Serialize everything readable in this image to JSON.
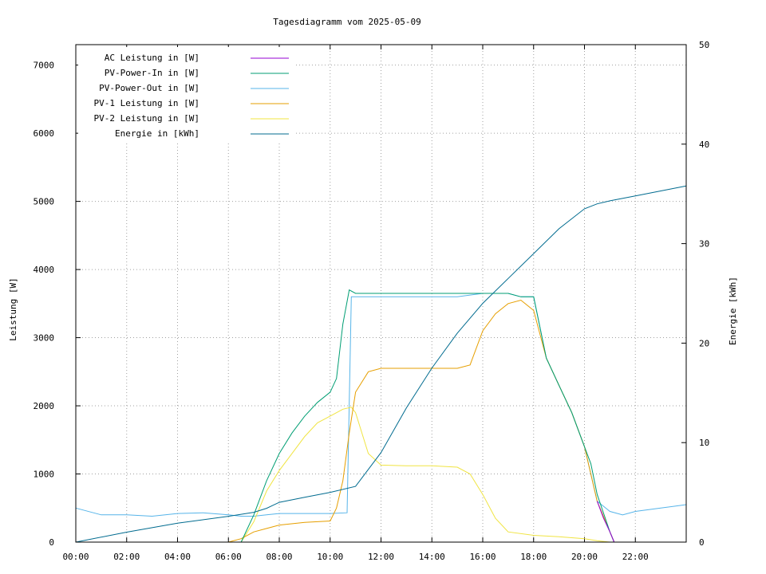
{
  "chart_data": {
    "type": "line",
    "title": "Tagesdiagramm vom 2025-05-09",
    "ylabel": "Leistung [W]",
    "y2label": "Energie [kWh]",
    "xlabel": "",
    "xlim_hours": [
      0,
      24
    ],
    "ylim": [
      0,
      7300
    ],
    "y2lim": [
      0,
      50
    ],
    "x_ticks": [
      "00:00",
      "02:00",
      "04:00",
      "06:00",
      "08:00",
      "10:00",
      "12:00",
      "14:00",
      "16:00",
      "18:00",
      "20:00",
      "22:00"
    ],
    "y_ticks": [
      "0",
      "1000",
      "2000",
      "3000",
      "4000",
      "5000",
      "6000",
      "7000"
    ],
    "y2_ticks": [
      "0",
      "10",
      "20",
      "30",
      "40",
      "50"
    ],
    "grid": true,
    "legend_position": "top-left",
    "series": [
      {
        "name": "AC Leistung in [W]",
        "color": "#9400d3",
        "axis": "left",
        "x": [
          "20:30",
          "20:45",
          "21:00",
          "21:10"
        ],
        "y": [
          600,
          350,
          150,
          0
        ]
      },
      {
        "name": "PV-Power-In in [W]",
        "color": "#009e73",
        "axis": "left",
        "x": [
          "06:30",
          "07:00",
          "07:30",
          "08:00",
          "08:30",
          "09:00",
          "09:30",
          "10:00",
          "10:15",
          "10:30",
          "10:45",
          "11:00",
          "12:00",
          "13:00",
          "13:45",
          "14:00",
          "15:00",
          "16:00",
          "17:00",
          "17:30",
          "18:00",
          "18:30",
          "19:00",
          "19:30",
          "20:00",
          "20:15",
          "20:30",
          "21:00",
          "21:10"
        ],
        "y": [
          0,
          400,
          900,
          1300,
          1600,
          1850,
          2050,
          2200,
          2400,
          3200,
          3700,
          3650,
          3650,
          3650,
          3650,
          3650,
          3650,
          3650,
          3650,
          3600,
          3600,
          2700,
          2300,
          1900,
          1400,
          1150,
          700,
          150,
          0
        ]
      },
      {
        "name": "PV-Power-Out in [W]",
        "color": "#56b4e9",
        "axis": "left",
        "x": [
          "00:00",
          "01:00",
          "02:00",
          "03:00",
          "04:00",
          "05:00",
          "06:00",
          "06:30",
          "07:00",
          "07:30",
          "08:00",
          "08:30",
          "09:00",
          "10:00",
          "10:40",
          "10:50",
          "11:00",
          "12:00",
          "13:00",
          "14:00",
          "15:00",
          "16:00",
          "17:00",
          "17:30",
          "18:00",
          "18:30",
          "19:00",
          "19:30",
          "20:00",
          "20:30",
          "21:00",
          "21:30",
          "22:00",
          "23:00",
          "24:00"
        ],
        "y": [
          500,
          400,
          400,
          380,
          420,
          430,
          400,
          380,
          380,
          400,
          420,
          420,
          420,
          420,
          430,
          3600,
          3600,
          3600,
          3600,
          3600,
          3600,
          3650,
          3650,
          3600,
          3600,
          2700,
          2300,
          1900,
          1400,
          600,
          450,
          400,
          450,
          500,
          550
        ]
      },
      {
        "name": "PV-1 Leistung in [W]",
        "color": "#e69f00",
        "axis": "left",
        "x": [
          "06:00",
          "06:30",
          "07:00",
          "07:30",
          "08:00",
          "09:00",
          "10:00",
          "10:15",
          "10:30",
          "10:45",
          "11:00",
          "11:30",
          "12:00",
          "13:00",
          "14:00",
          "15:00",
          "15:30",
          "16:00",
          "16:30",
          "17:00",
          "17:30",
          "18:00",
          "18:30",
          "19:00",
          "19:30",
          "20:00",
          "20:30",
          "21:00",
          "21:10"
        ],
        "y": [
          0,
          50,
          150,
          200,
          250,
          290,
          310,
          500,
          900,
          1600,
          2200,
          2500,
          2550,
          2550,
          2550,
          2550,
          2600,
          3100,
          3350,
          3500,
          3550,
          3400,
          2700,
          2300,
          1900,
          1400,
          600,
          150,
          0
        ]
      },
      {
        "name": "PV-2 Leistung in [W]",
        "color": "#f0e442",
        "axis": "left",
        "x": [
          "06:30",
          "07:00",
          "07:30",
          "08:00",
          "08:30",
          "09:00",
          "09:30",
          "10:00",
          "10:30",
          "10:50",
          "11:00",
          "11:30",
          "12:00",
          "13:00",
          "14:00",
          "15:00",
          "15:30",
          "16:00",
          "16:30",
          "17:00",
          "18:00",
          "19:00",
          "20:00",
          "20:30",
          "21:00"
        ],
        "y": [
          0,
          300,
          750,
          1050,
          1300,
          1550,
          1750,
          1850,
          1950,
          1980,
          1900,
          1300,
          1130,
          1120,
          1120,
          1100,
          1000,
          700,
          350,
          150,
          100,
          80,
          50,
          20,
          0
        ]
      },
      {
        "name": "Energie in [kWh]",
        "color": "#006b8f",
        "axis": "right",
        "x": [
          "00:00",
          "02:00",
          "04:00",
          "06:00",
          "07:00",
          "07:30",
          "08:00",
          "09:00",
          "10:00",
          "11:00",
          "12:00",
          "13:00",
          "14:00",
          "15:00",
          "16:00",
          "17:00",
          "18:00",
          "19:00",
          "20:00",
          "20:30",
          "21:00",
          "22:00",
          "23:00",
          "24:00"
        ],
        "y": [
          0,
          1.0,
          1.9,
          2.6,
          3.0,
          3.4,
          4.0,
          4.5,
          5.0,
          5.6,
          9.0,
          13.5,
          17.5,
          21.0,
          24.0,
          26.5,
          29.0,
          31.5,
          33.5,
          34.0,
          34.3,
          34.8,
          35.3,
          35.8
        ]
      }
    ]
  }
}
